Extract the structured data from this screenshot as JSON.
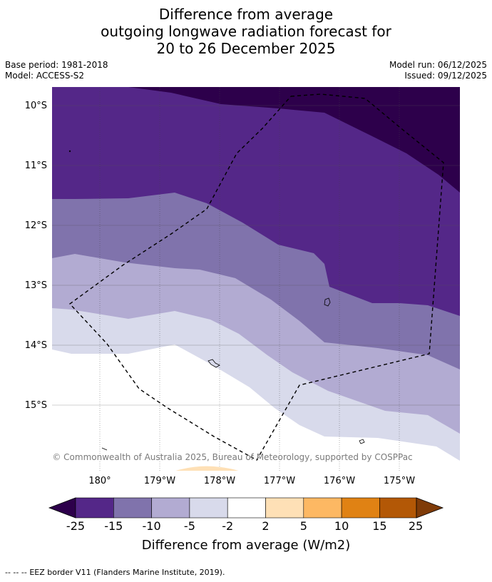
{
  "title": {
    "line1": "Difference from average",
    "line2": "outgoing longwave radiation forecast for",
    "line3": "20 to 26 December 2025"
  },
  "meta": {
    "base_period": "Base period: 1981-2018",
    "model": "Model: ACCESS-S2",
    "model_run": "Model run: 06/12/2025",
    "issued": "Issued: 09/12/2025"
  },
  "map": {
    "lat_labels": [
      "10°S",
      "11°S",
      "12°S",
      "13°S",
      "14°S",
      "15°S"
    ],
    "lon_labels": [
      "180°",
      "179°W",
      "178°W",
      "177°W",
      "176°W",
      "175°W"
    ],
    "copyright": "© Commonwealth of Australia 2025, Bureau of Meteorology, supported by COSPPac"
  },
  "colorbar": {
    "ticks": [
      "-25",
      "-15",
      "-10",
      "-5",
      "-2",
      "2",
      "5",
      "10",
      "15",
      "25"
    ],
    "colors": [
      "#2d004b",
      "#542788",
      "#8073ac",
      "#b2abd2",
      "#d8daeb",
      "#ffffff",
      "#fee0b6",
      "#fdb863",
      "#e08214",
      "#b35806",
      "#7f3b08"
    ],
    "label": "Difference from average (W/m2)"
  },
  "footer": {
    "dash": "--  --  --",
    "text": "EEZ border V11 (Flanders Marine Institute, 2019)."
  }
}
